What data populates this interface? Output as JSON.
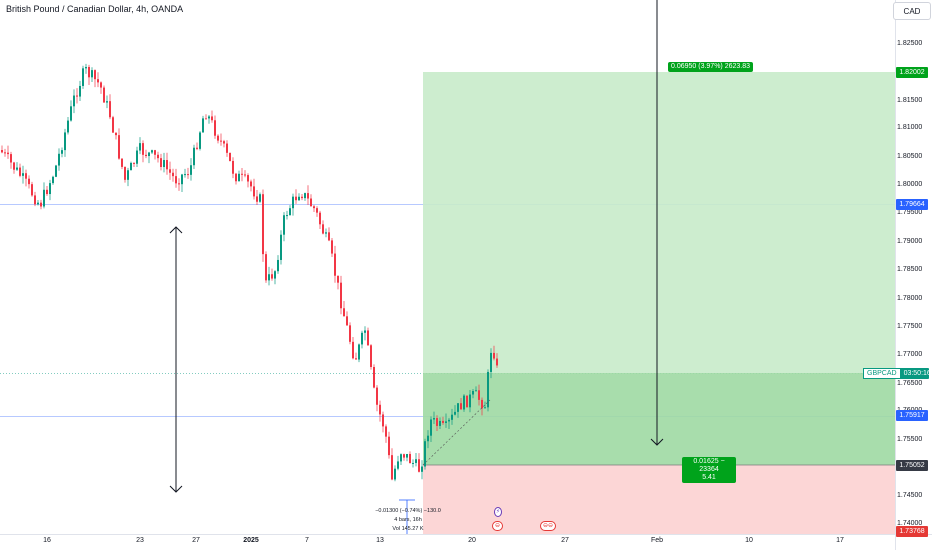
{
  "header": {
    "title": "British Pound / Canadian Dollar, 4h, OANDA",
    "currency_button": "CAD"
  },
  "price_axis": {
    "ticks": [
      "1.82500",
      "1.81500",
      "1.81000",
      "1.80500",
      "1.80000",
      "1.79500",
      "1.79000",
      "1.78500",
      "1.78000",
      "1.77500",
      "1.77000",
      "1.76500",
      "1.76000",
      "1.75500",
      "1.74500",
      "1.74000"
    ],
    "badges": [
      {
        "label": "1.82002",
        "color": "#00a31b"
      },
      {
        "label": "1.79664",
        "color": "#2962ff"
      },
      {
        "label": "1.75917",
        "color": "#2962ff"
      },
      {
        "label": "1.75052",
        "color": "#363a45"
      },
      {
        "label": "1.73768",
        "color": "#e53935"
      }
    ]
  },
  "symbol_badge": {
    "symbol": "GBPCAD",
    "countdown": "03:50:16"
  },
  "time_axis": {
    "ticks": [
      "16",
      "23",
      "27",
      "2025",
      "7",
      "13",
      "20",
      "27",
      "Feb",
      "10",
      "17"
    ]
  },
  "position_tool": {
    "target_label": "0.06950 (3.97%) 2623.83",
    "entry_label_line1": "0.01625 − 23364",
    "entry_label_line2": "5.41"
  },
  "measure": {
    "line1": "−0.01300 (−0.74%) −130.0",
    "line2": "4 bars, 16h",
    "line3": "Vol 145.27 K"
  },
  "events": [
    "⚡"
  ],
  "colors": {
    "up": "#089981",
    "down": "#f23645",
    "profit": "#c8ebca",
    "loss": "#fcd2d2",
    "accent": "#2962ff"
  }
}
